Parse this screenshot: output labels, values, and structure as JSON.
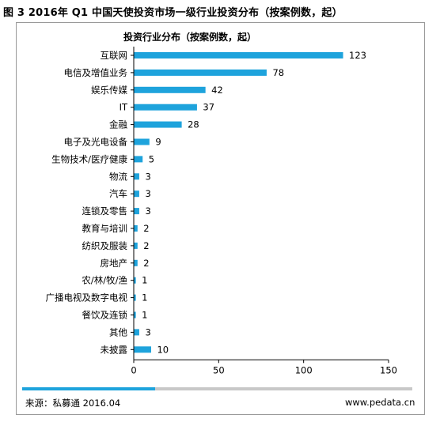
{
  "figure_title": "图 3 2016年 Q1 中国天使投资市场一级行业投资分布（按案例数，起）",
  "source": "来源：私募通 2016.04",
  "website": "www.pedata.cn",
  "colors": {
    "bar": "#1ea3dc",
    "axis": "#000000",
    "frame": "#9a9a9a",
    "footer_track": "#c8c8c8"
  },
  "chart_data": {
    "type": "bar",
    "orientation": "horizontal",
    "title": "投资行业分布（按案例数，起）",
    "categories": [
      "互联网",
      "电信及增值业务",
      "娱乐传媒",
      "IT",
      "金融",
      "电子及光电设备",
      "生物技术/医疗健康",
      "物流",
      "汽车",
      "连锁及零售",
      "教育与培训",
      "纺织及服装",
      "房地产",
      "农/林/牧/渔",
      "广播电视及数字电视",
      "餐饮及连锁",
      "其他",
      "未披露"
    ],
    "values": [
      123,
      78,
      42,
      37,
      28,
      9,
      5,
      3,
      3,
      3,
      2,
      2,
      2,
      1,
      1,
      1,
      3,
      10
    ],
    "xlim": [
      0,
      150
    ],
    "xticks": [
      0,
      50,
      100,
      150
    ],
    "xlabel": "",
    "ylabel": "",
    "grid": false,
    "legend": "none",
    "data_labels": true
  }
}
